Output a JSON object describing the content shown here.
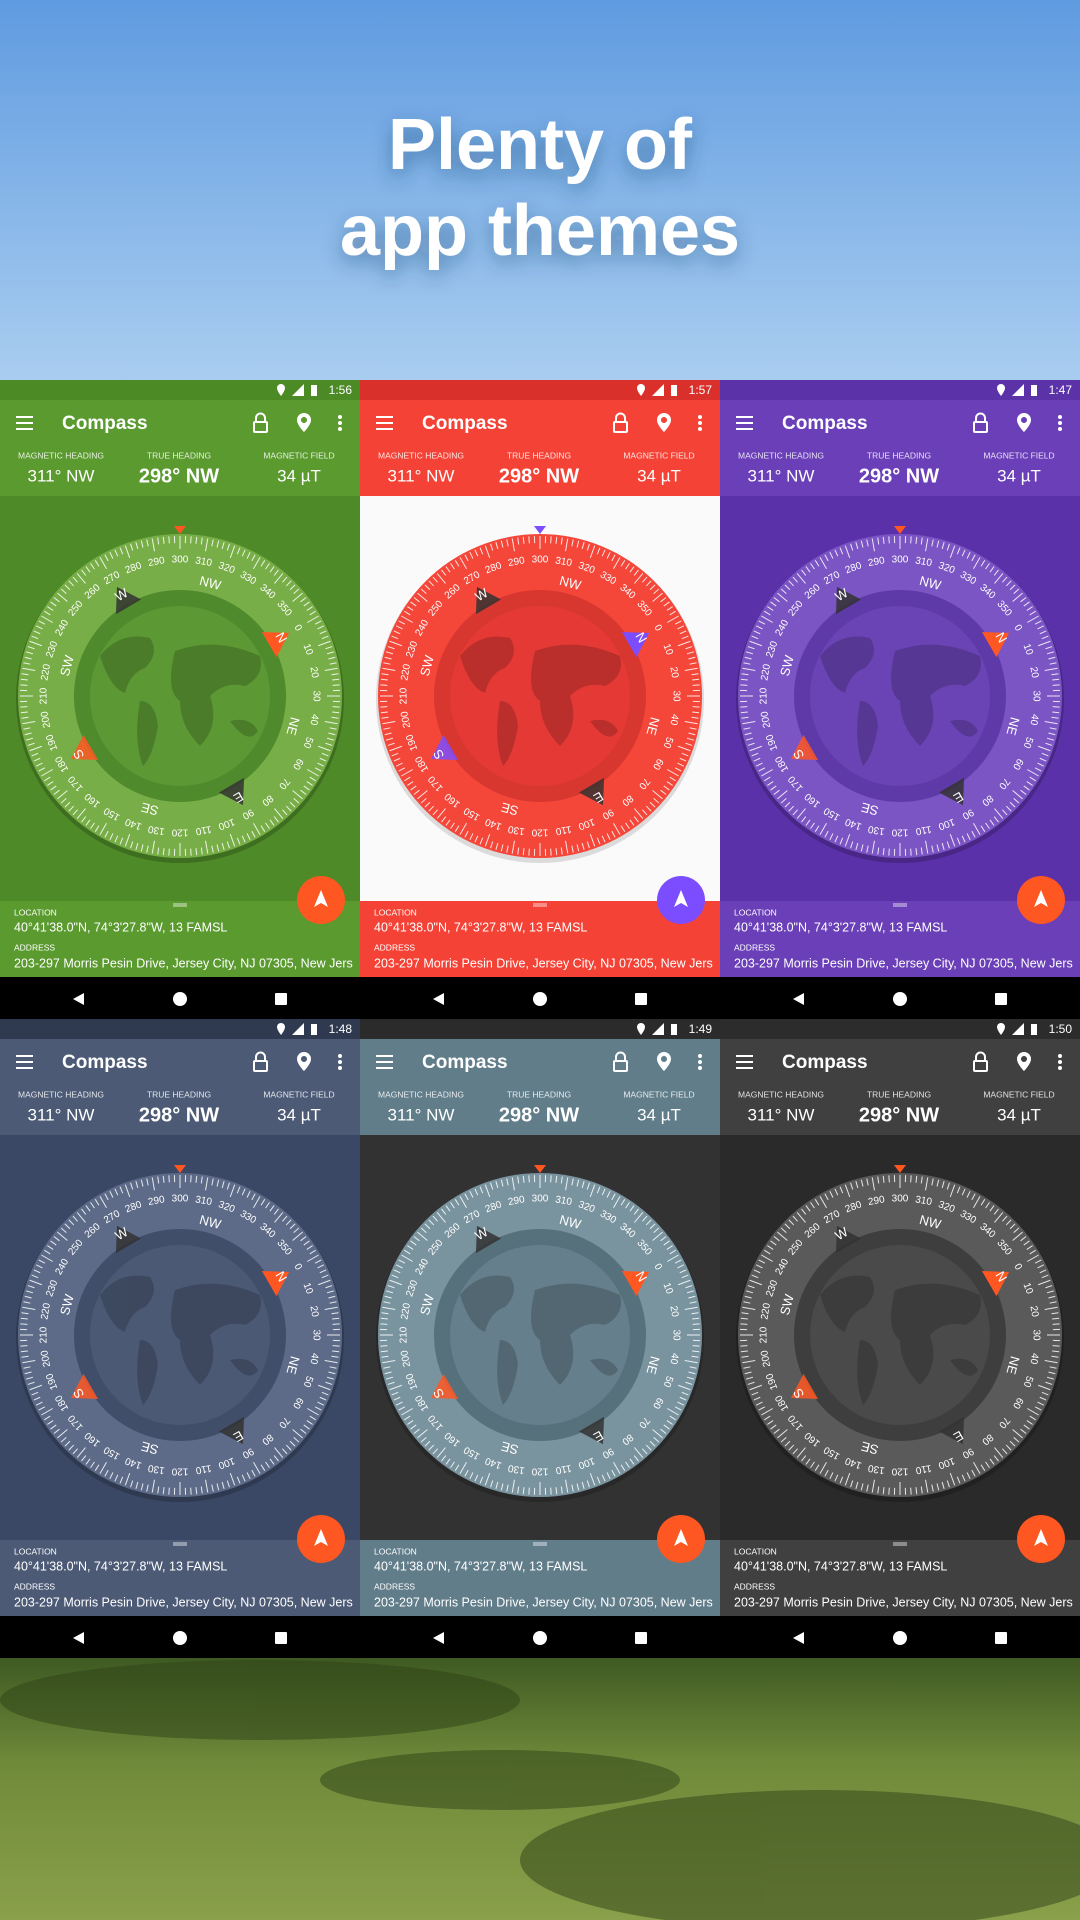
{
  "header": {
    "title_lines": [
      "Plenty of",
      "app themes"
    ]
  },
  "app": {
    "title": "Compass",
    "magnetic_heading_label": "MAGNETIC HEADING",
    "magnetic_heading": "311° NW",
    "true_heading_label": "TRUE HEADING",
    "true_heading": "298° NW",
    "magnetic_field_label": "MAGNETIC FIELD",
    "magnetic_field": "34 µT",
    "location_label": "LOCATION",
    "location": "40°41'38.0\"N, 74°3'27.8\"W, 13 FAMSL",
    "address_label": "ADDRESS",
    "address": "203-297 Morris Pesin Drive, Jersey City, NJ 07305, New Jers"
  },
  "dial": {
    "degrees": [
      0,
      10,
      20,
      30,
      40,
      50,
      60,
      70,
      80,
      90,
      100,
      110,
      120,
      130,
      140,
      150,
      160,
      170,
      180,
      190,
      200,
      210,
      220,
      230,
      240,
      250,
      260,
      270,
      280,
      290,
      300,
      310,
      320,
      330,
      340,
      350
    ],
    "cardinals": [
      "N",
      "NE",
      "E",
      "SE",
      "S",
      "SW",
      "W",
      "NW"
    ]
  },
  "screens": [
    {
      "time": "1:56",
      "status": "#4c8a26",
      "primary": "#5a9a2f",
      "background": "#4e8a27",
      "ring": "#78ae47",
      "face": "#5c9834",
      "inner": "#4f8a2c",
      "accent": "#ff5722"
    },
    {
      "time": "1:57",
      "status": "#d9302c",
      "primary": "#f44336",
      "background": "#fafafa",
      "ring": "#f4473a",
      "face": "#e53935",
      "inner": "#d8372f",
      "accent": "#7c4dff"
    },
    {
      "time": "1:47",
      "status": "#5b32a8",
      "primary": "#6a3fb8",
      "background": "#5a31a8",
      "ring": "#7b55c4",
      "face": "#6a44b5",
      "inner": "#5e3aa8",
      "accent": "#ff5722"
    },
    {
      "time": "1:48",
      "status": "#2f3a50",
      "primary": "#4c5a76",
      "background": "#3b4865",
      "ring": "#5d6b88",
      "face": "#4b5975",
      "inner": "#414e6a",
      "accent": "#ff5722"
    },
    {
      "time": "1:49",
      "status": "#2b2b2b",
      "primary": "#617d8a",
      "background": "#323232",
      "ring": "#7a949f",
      "face": "#667f8c",
      "inner": "#56707c",
      "accent": "#ff5722"
    },
    {
      "time": "1:50",
      "status": "#2c2c2c",
      "primary": "#404040",
      "background": "#2a2a2a",
      "ring": "#5a5a5a",
      "face": "#4a4a4a",
      "inner": "#3e3e3e",
      "accent": "#ff5722"
    }
  ]
}
